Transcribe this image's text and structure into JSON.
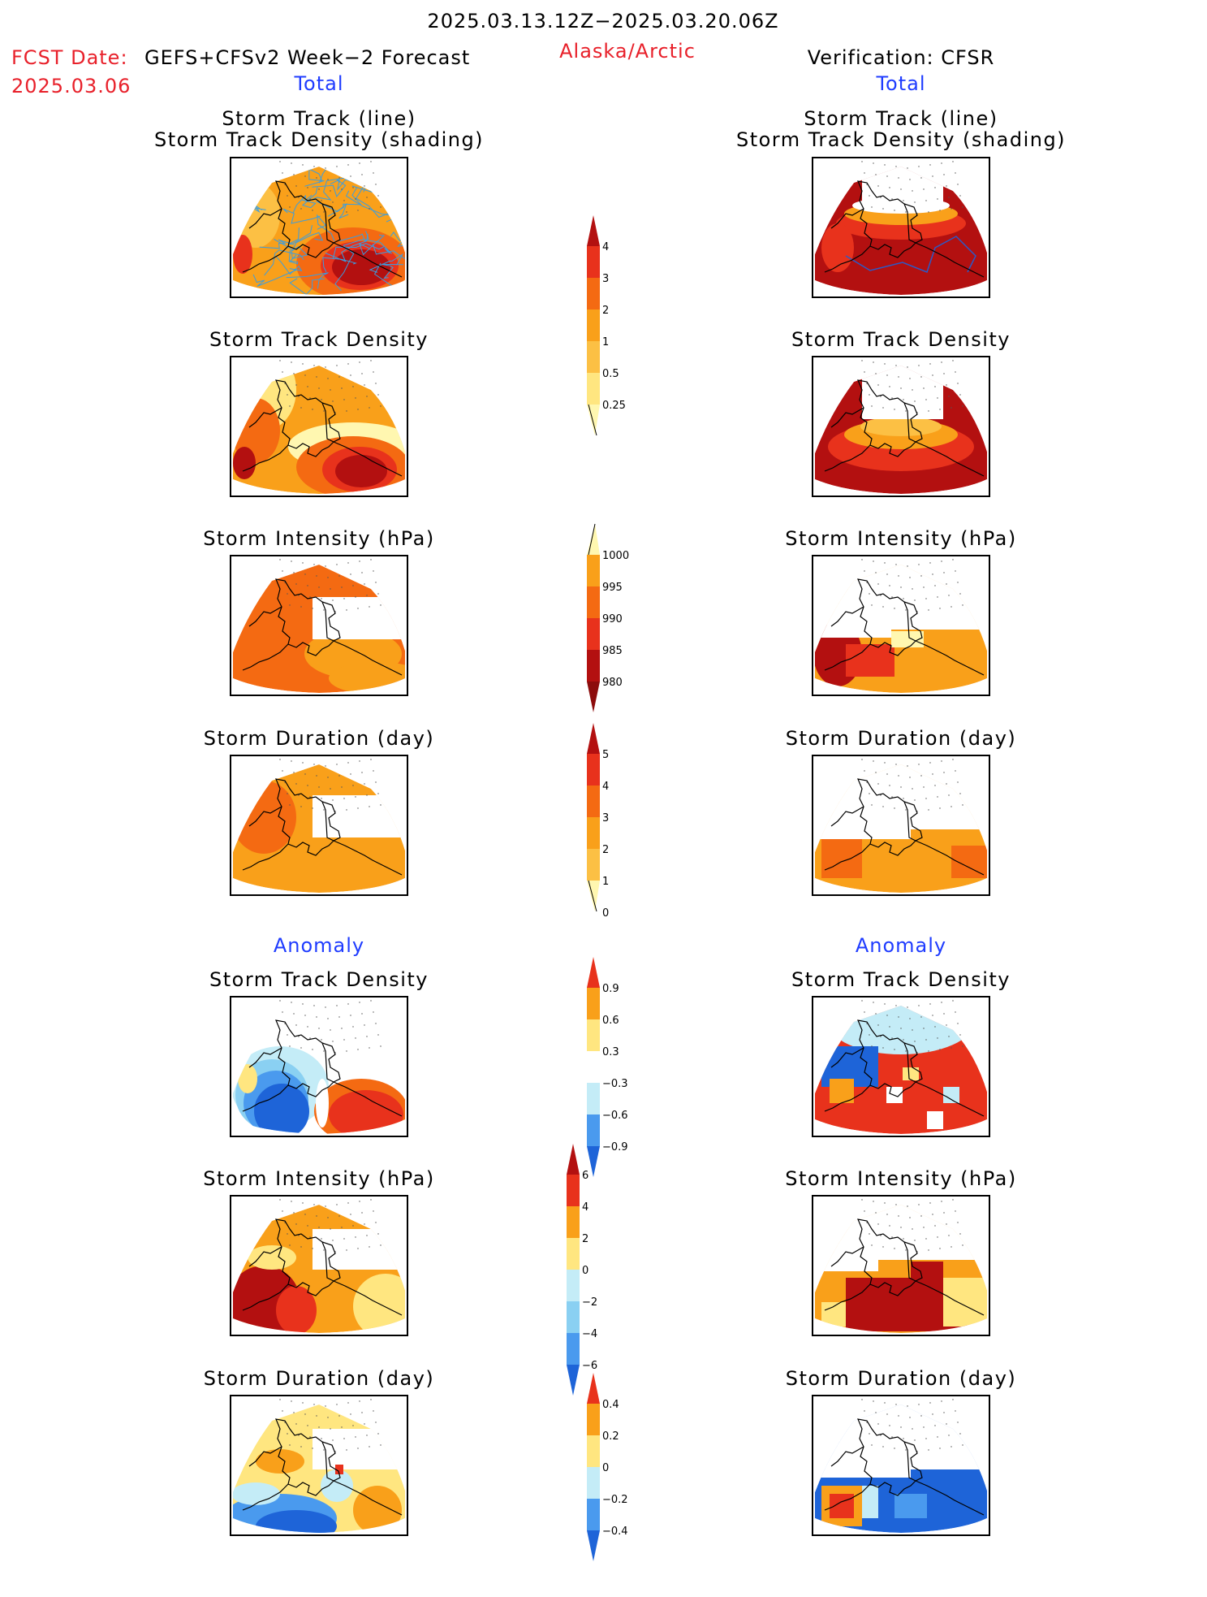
{
  "header": {
    "date_range": "2025.03.13.12Z−2025.03.20.06Z",
    "fcst_label": "FCST Date:",
    "fcst_model": "GEFS+CFSv2 Week−2 Forecast",
    "fcst_date": "2025.03.06",
    "region": "Alaska/Arctic",
    "verification": "Verification: CFSR"
  },
  "sections": {
    "total_label": "Total",
    "anomaly_label": "Anomaly"
  },
  "panels": {
    "track_line_1": "Storm Track (line)",
    "track_line_2": "Storm Track Density (shading)",
    "density": "Storm Track Density",
    "intensity": "Storm Intensity (hPa)",
    "duration": "Storm Duration (day)"
  },
  "colorbars": {
    "density_total": [
      "0.25",
      "0.5",
      "1",
      "2",
      "3",
      "4"
    ],
    "intensity_total": [
      "1000",
      "995",
      "990",
      "985",
      "980"
    ],
    "duration_total": [
      "0",
      "1",
      "2",
      "3",
      "4",
      "5"
    ],
    "density_anom": [
      "−0.9",
      "−0.6",
      "−0.3",
      "0.3",
      "0.6",
      "0.9"
    ],
    "intensity_anom": [
      "−6",
      "−4",
      "−2",
      "0",
      "2",
      "4",
      "6"
    ],
    "duration_anom": [
      "−0.4",
      "−0.2",
      "0",
      "0.2",
      "0.4"
    ]
  },
  "colors": {
    "pale": "#fff7b0",
    "light_yellow": "#ffe680",
    "yellow_orange": "#fcc044",
    "orange": "#f9a01a",
    "dark_orange": "#f46a12",
    "red": "#e8321c",
    "dark_red": "#b31010",
    "maroon": "#8c0c0c",
    "light_blue": "#c4ecf7",
    "sky_blue": "#8ad0f2",
    "mid_blue": "#4a9aee",
    "blue": "#1e64d8",
    "track_line_fcst": "#3a9de0",
    "track_line_obs": "#2a5ac8"
  }
}
